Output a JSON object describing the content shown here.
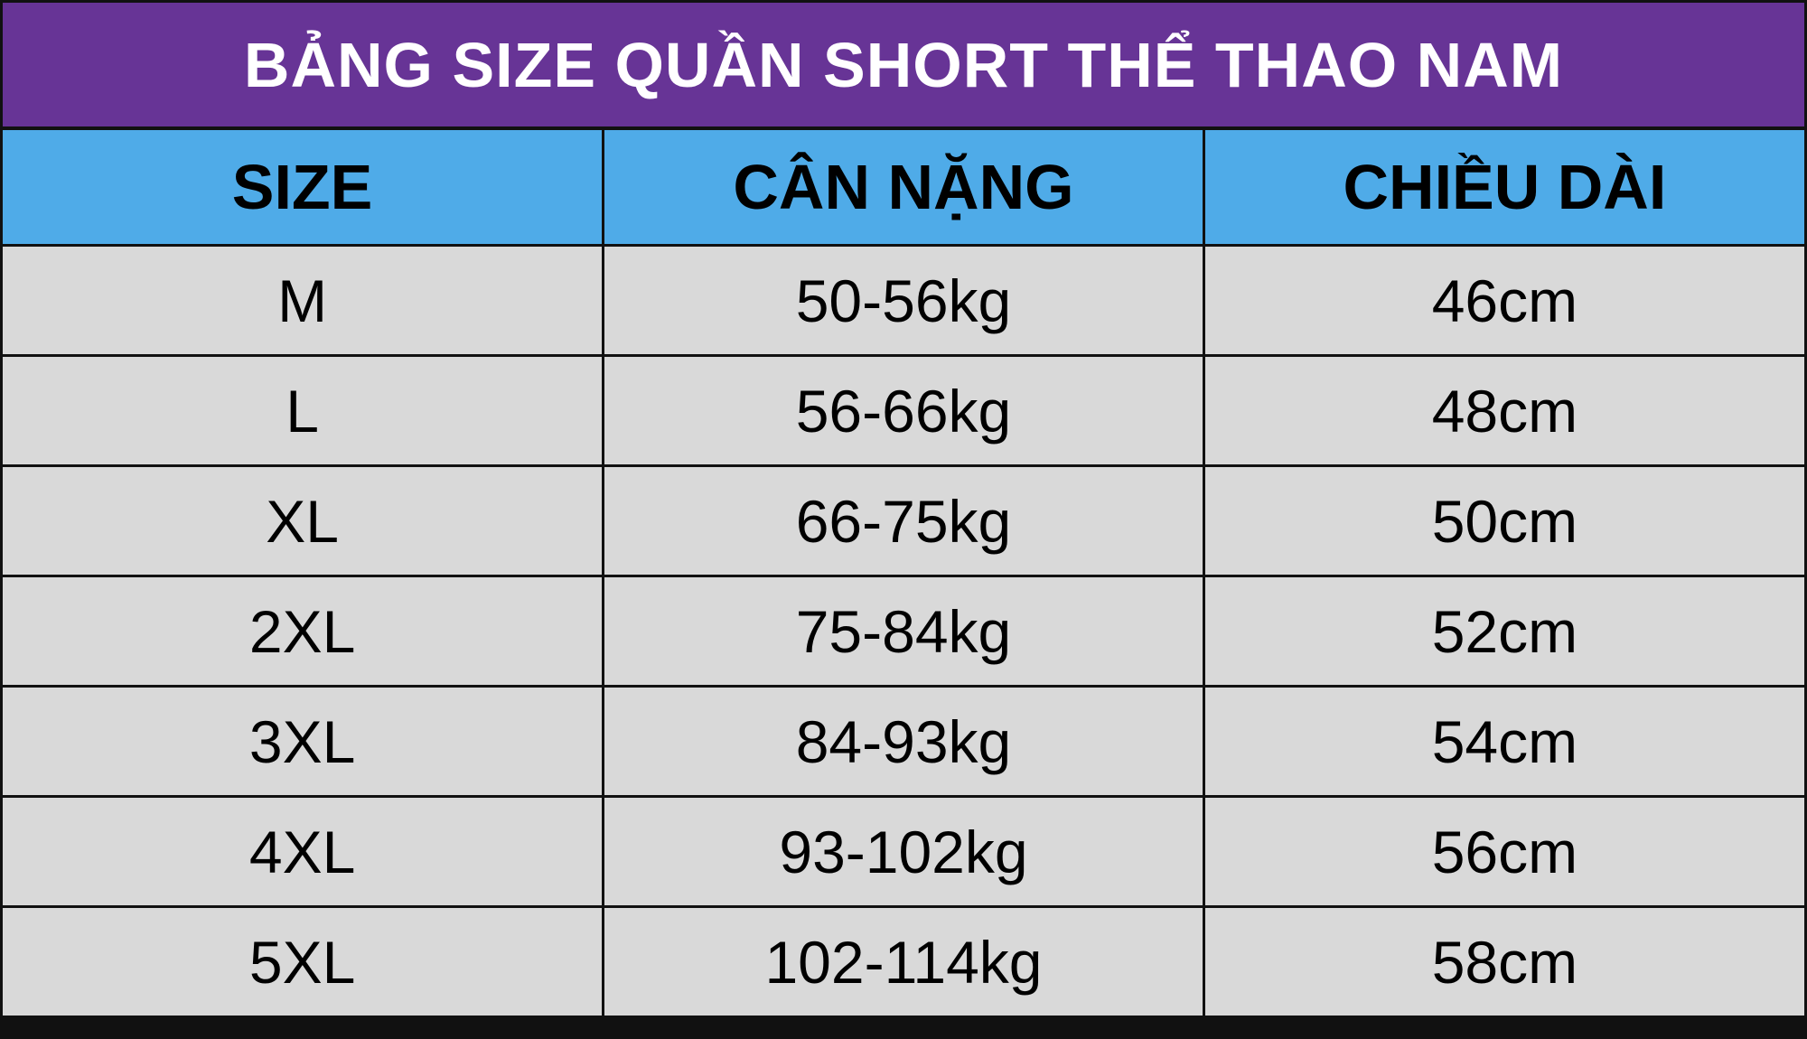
{
  "title": "BẢNG SIZE QUẦN SHORT THỂ THAO NAM",
  "colors": {
    "title_bg": "#673496",
    "header_bg": "#4fabe8",
    "row_bg": "#d9d9d9"
  },
  "headers": [
    "SIZE",
    "CÂN NẶNG",
    "CHIỀU DÀI"
  ],
  "rows": [
    [
      "M",
      "50-56kg",
      "46cm"
    ],
    [
      "L",
      "56-66kg",
      "48cm"
    ],
    [
      "XL",
      "66-75kg",
      "50cm"
    ],
    [
      "2XL",
      "75-84kg",
      "52cm"
    ],
    [
      "3XL",
      "84-93kg",
      "54cm"
    ],
    [
      "4XL",
      "93-102kg",
      "56cm"
    ],
    [
      "5XL",
      "102-114kg",
      "58cm"
    ]
  ]
}
